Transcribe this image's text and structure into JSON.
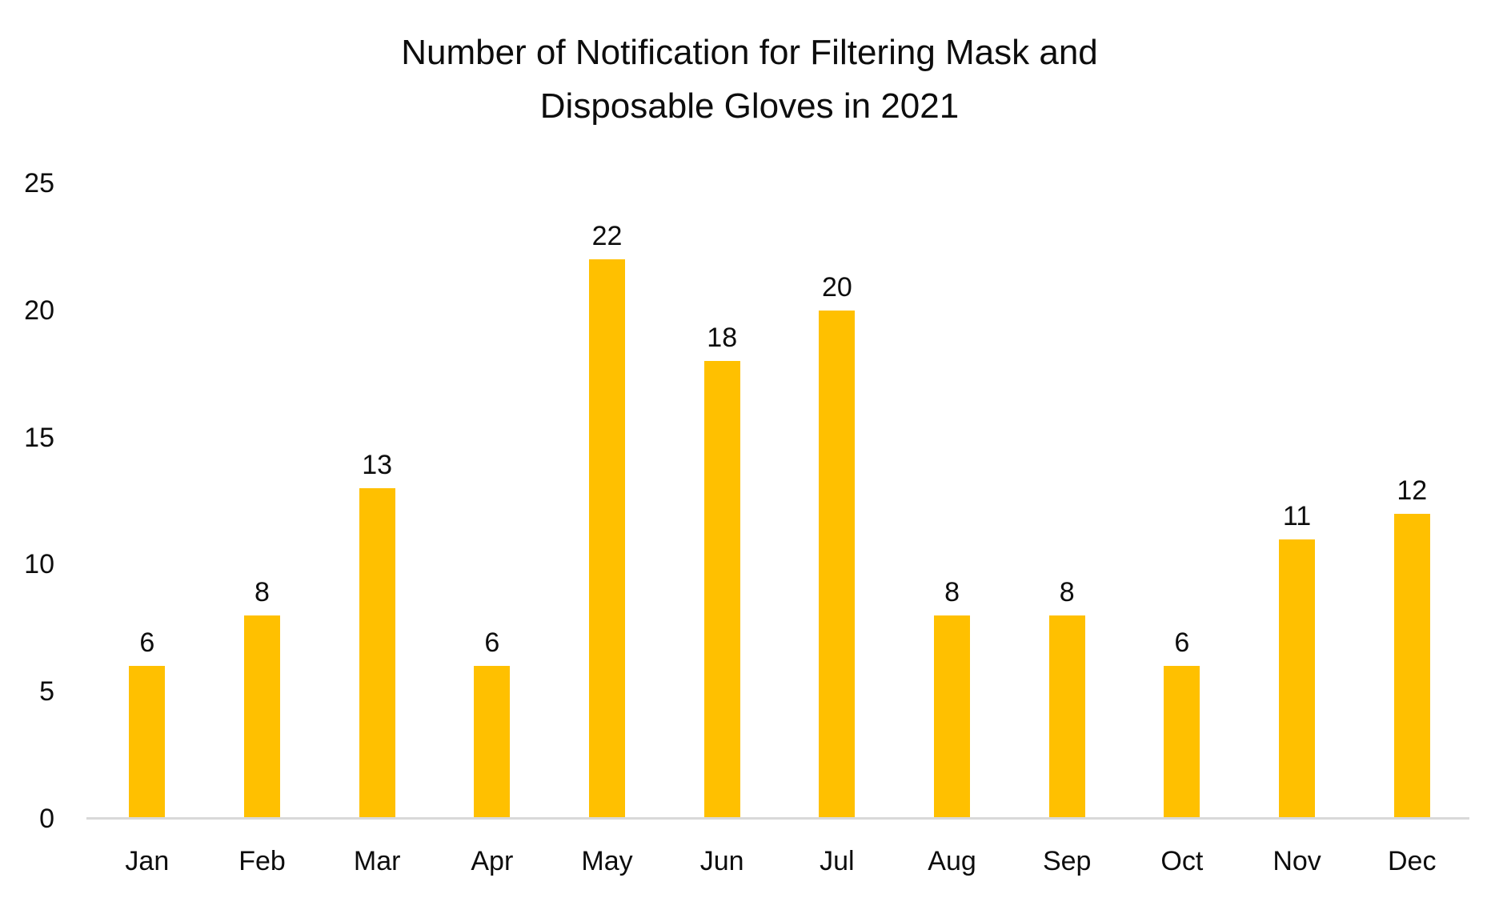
{
  "chart_data": {
    "type": "bar",
    "title": "Number of Notification for Filtering Mask and Disposable Gloves in 2021",
    "title_lines": [
      "Number of Notification for Filtering Mask and",
      "Disposable Gloves in 2021"
    ],
    "categories": [
      "Jan",
      "Feb",
      "Mar",
      "Apr",
      "May",
      "Jun",
      "Jul",
      "Aug",
      "Sep",
      "Oct",
      "Nov",
      "Dec"
    ],
    "values": [
      6,
      8,
      13,
      6,
      22,
      18,
      20,
      8,
      8,
      6,
      11,
      12
    ],
    "xlabel": "",
    "ylabel": "",
    "ylim": [
      0,
      25
    ],
    "yticks": [
      0,
      5,
      10,
      15,
      20,
      25
    ],
    "grid": false,
    "legend": "none",
    "data_labels_shown": true,
    "bar_color": "#FFC000",
    "axis_line_color": "#D9D9D9",
    "text_color": "#0D0D0D",
    "background_color": "#FFFFFF"
  }
}
